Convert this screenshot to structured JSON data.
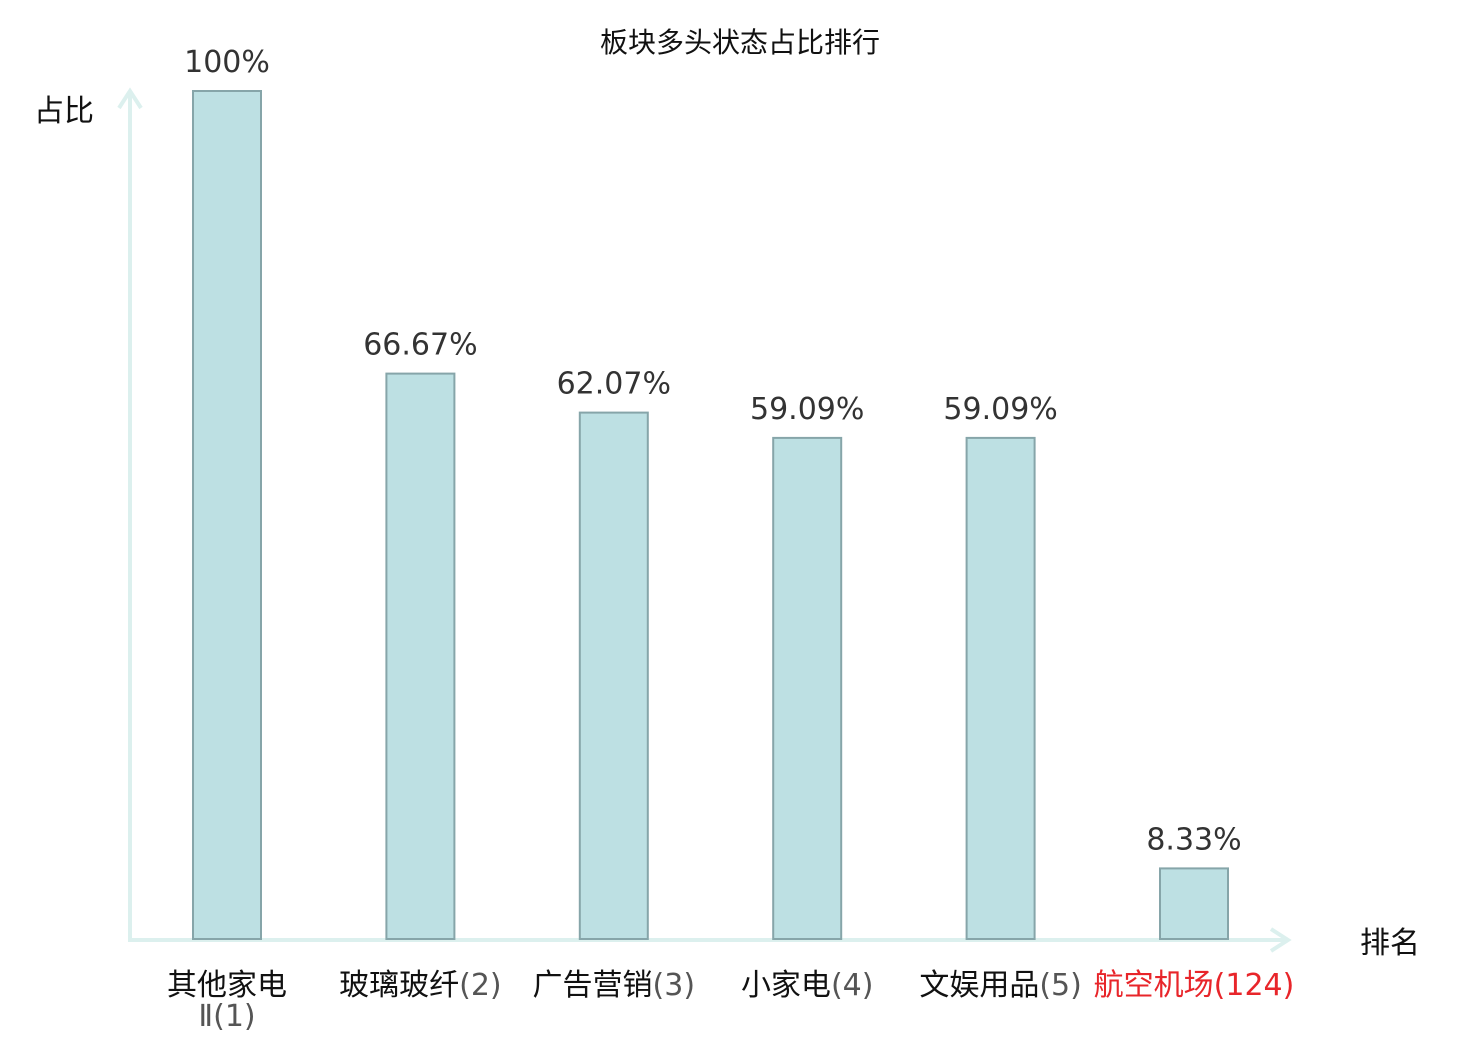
{
  "chart_data": {
    "type": "bar",
    "title": "板块多头状态占比排行",
    "xlabel": "排名",
    "ylabel": "占比",
    "ylim": [
      0,
      100
    ],
    "grid": false,
    "categories": [
      {
        "name": "其他家电",
        "name2": "Ⅱ",
        "rank": "(1)",
        "highlight": false
      },
      {
        "name": "玻璃玻纤",
        "name2": "",
        "rank": "(2)",
        "highlight": false
      },
      {
        "name": "广告营销",
        "name2": "",
        "rank": "(3)",
        "highlight": false
      },
      {
        "name": "小家电",
        "name2": "",
        "rank": "(4)",
        "highlight": false
      },
      {
        "name": "文娱用品",
        "name2": "",
        "rank": "(5)",
        "highlight": false
      },
      {
        "name": "航空机场",
        "name2": "",
        "rank": "(124)",
        "highlight": true
      }
    ],
    "values": [
      100,
      66.67,
      62.07,
      59.09,
      59.09,
      8.33
    ],
    "value_labels": [
      "100%",
      "66.67%",
      "62.07%",
      "59.09%",
      "59.09%",
      "8.33%"
    ],
    "colors": {
      "bar_fill": "#bde0e3",
      "bar_stroke": "#86a5a9",
      "axis": "#dcf0ee",
      "highlight": "#e8252a"
    }
  }
}
